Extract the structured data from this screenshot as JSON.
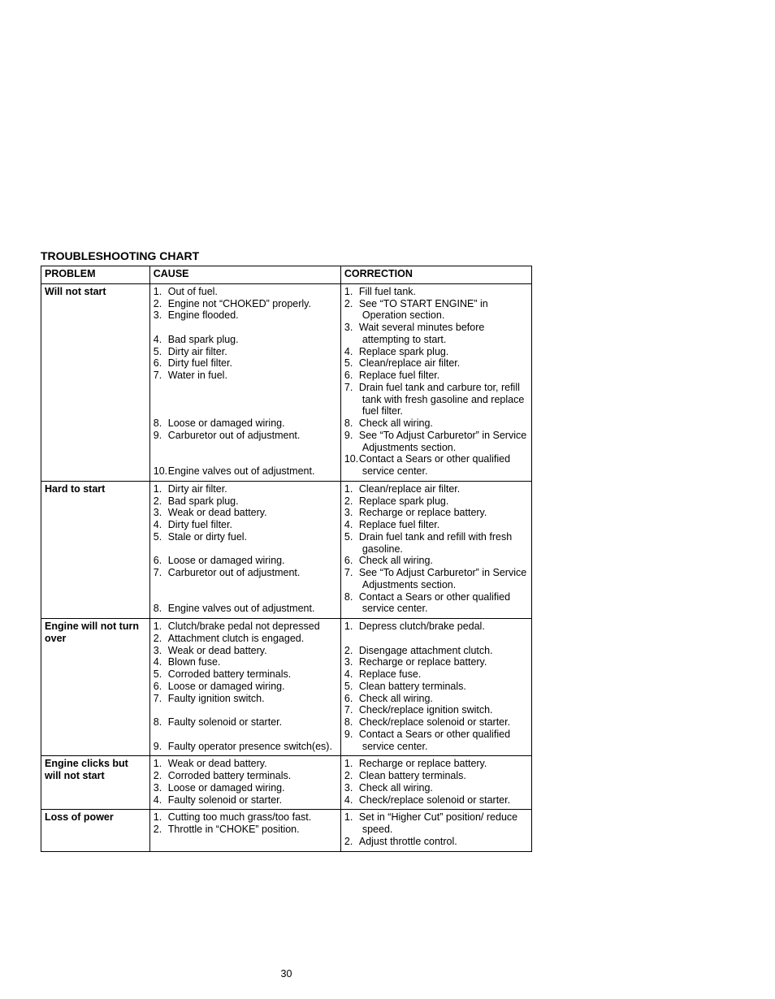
{
  "page": {
    "title": "TROUBLESHOOTING CHART",
    "page_number": "30",
    "headers": {
      "problem": "PROBLEM",
      "cause": "CAUSE",
      "correction": "CORRECTION"
    },
    "rows": [
      {
        "problem": "Will not start",
        "causes": [
          "Out of fuel.",
          "Engine not “CHOKED” properly.",
          "Engine flooded.",
          "Bad spark plug.",
          "Dirty air filter.",
          "Dirty fuel filter.",
          "Water in fuel.",
          "Loose or damaged wiring.",
          "Carburetor out of adjustment.",
          "Engine valves out of adjustment."
        ],
        "corrections": [
          "Fill fuel tank.",
          "See “TO START ENGINE” in Operation section.",
          "Wait several minutes before attempting to start.",
          "Replace spark plug.",
          "Clean/replace air filter.",
          "Replace fuel filter.",
          "Drain fuel tank and carbure tor, refill tank with fresh gasoline and replace fuel filter.",
          "Check all wiring.",
          "See “To Adjust Carburetor” in Service Adjustments section.",
          "Contact a Sears or other qualified service center."
        ]
      },
      {
        "problem": "Hard to start",
        "causes": [
          "Dirty air filter.",
          "Bad spark plug.",
          "Weak or dead battery.",
          "Dirty fuel filter.",
          "Stale or dirty fuel.",
          "Loose or damaged wiring.",
          "Carburetor out of adjustment.",
          "Engine valves out of adjustment."
        ],
        "corrections": [
          "Clean/replace air filter.",
          "Replace spark plug.",
          "Recharge or replace battery.",
          "Replace fuel filter.",
          "Drain fuel tank and refill with fresh gasoline.",
          "Check all wiring.",
          "See “To Adjust Carburetor” in Service Adjustments section.",
          "Contact a Sears or other qualified service center."
        ]
      },
      {
        "problem": "Engine will not turn over",
        "causes": [
          "Clutch/brake pedal not depressed",
          "Attachment clutch is engaged.",
          "Weak or dead battery.",
          "Blown fuse.",
          "Corroded battery terminals.",
          "Loose or damaged wiring.",
          "Faulty ignition switch.",
          "Faulty solenoid or starter.",
          "Faulty operator presence switch(es)."
        ],
        "corrections": [
          "Depress clutch/brake pedal.",
          "Disengage attachment clutch.",
          "Recharge or replace battery.",
          "Replace fuse.",
          "Clean battery terminals.",
          "Check all wiring.",
          "Check/replace ignition switch.",
          "Check/replace solenoid or starter.",
          "Contact a Sears or other qualified service center."
        ]
      },
      {
        "problem": "Engine clicks but will not start",
        "causes": [
          "Weak or dead battery.",
          "Corroded battery terminals.",
          "Loose or damaged wiring.",
          "Faulty solenoid or starter."
        ],
        "corrections": [
          "Recharge or replace battery.",
          "Clean battery terminals.",
          "Check all wiring.",
          "Check/replace solenoid or starter."
        ]
      },
      {
        "problem": "Loss of power",
        "causes": [
          "Cutting too much grass/too fast.",
          "Throttle in “CHOKE” position."
        ],
        "corrections": [
          "Set in “Higher Cut” position/ reduce speed.",
          "Adjust throttle control."
        ]
      }
    ]
  }
}
